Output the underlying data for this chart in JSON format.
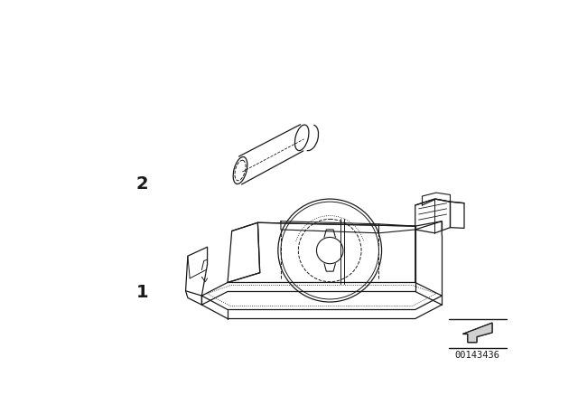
{
  "bg_color": "#ffffff",
  "line_color": "#1a1a1a",
  "label_1": "1",
  "label_2": "2",
  "part_number": "00143436",
  "fig_width": 6.4,
  "fig_height": 4.48,
  "dpi": 100
}
